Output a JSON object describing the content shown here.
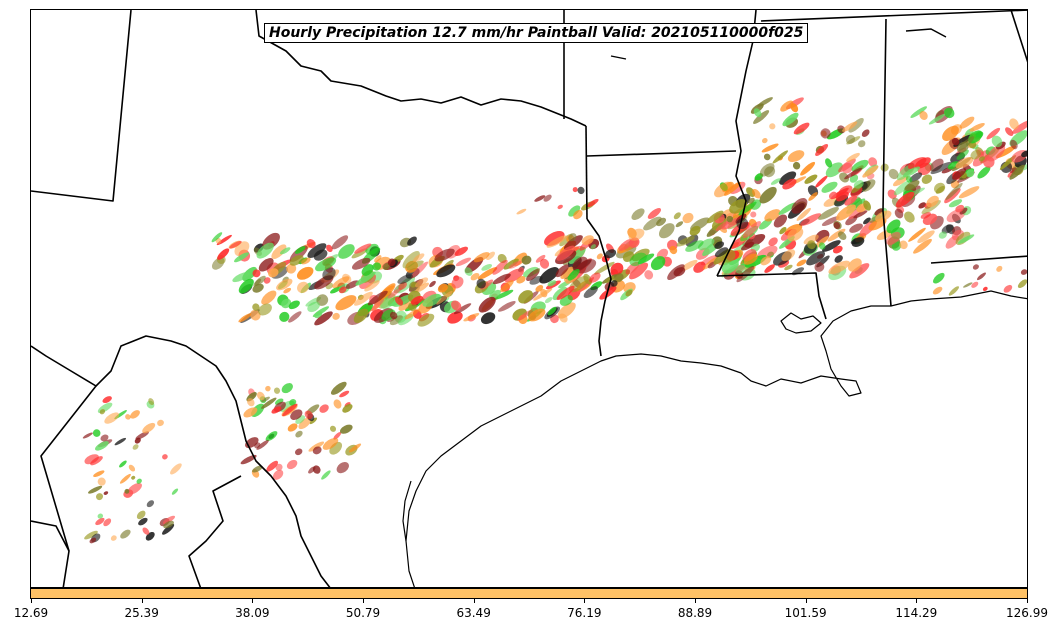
{
  "title": "Hourly Precipitation 12.7 mm/hr Paintball Valid: 202105110000f025",
  "colorbar": {
    "color": "#ffc266",
    "tick_labels": [
      "12.69",
      "25.39",
      "38.09",
      "50.79",
      "63.49",
      "76.19",
      "88.89",
      "101.59",
      "114.29",
      "126.99"
    ]
  },
  "paintball_colors": [
    "#ff2a2a",
    "#ff8c1a",
    "#ffa64d",
    "#22cc22",
    "#66dd66",
    "#999922",
    "#7a7a2a",
    "#8b1a1a",
    "#ff5555",
    "#1a1a1a"
  ]
}
